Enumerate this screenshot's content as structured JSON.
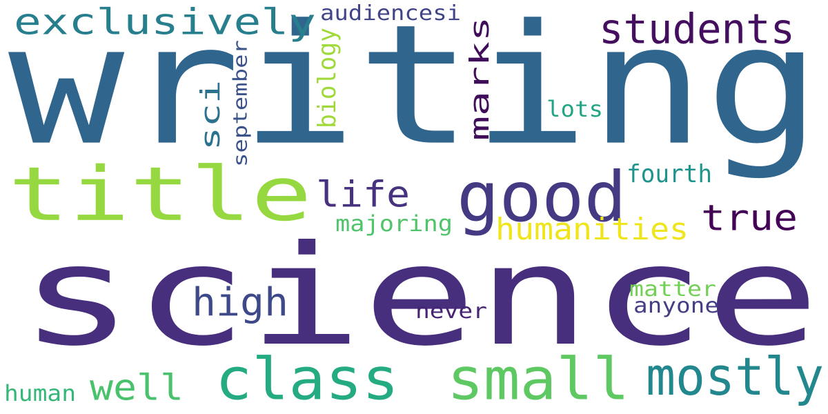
{
  "word_cloud": {
    "background": "#ffffff",
    "words": [
      {
        "text": "writing",
        "color": "#30668e",
        "vertical": false
      },
      {
        "text": "science",
        "color": "#472f7d",
        "vertical": false
      },
      {
        "text": "title",
        "color": "#96d83f",
        "vertical": false
      },
      {
        "text": "good",
        "color": "#443a83",
        "vertical": false
      },
      {
        "text": "class",
        "color": "#25ab82",
        "vertical": false
      },
      {
        "text": "small",
        "color": "#5ec962",
        "vertical": false
      },
      {
        "text": "mostly",
        "color": "#23888e",
        "vertical": false
      },
      {
        "text": "students",
        "color": "#440f5e",
        "vertical": false
      },
      {
        "text": "exclusively",
        "color": "#277f8e",
        "vertical": false
      },
      {
        "text": "marks",
        "color": "#3f0d5a",
        "vertical": true
      },
      {
        "text": "sci",
        "color": "#2c728e",
        "vertical": true
      },
      {
        "text": "life",
        "color": "#46327e",
        "vertical": false
      },
      {
        "text": "high",
        "color": "#3e4989",
        "vertical": false
      },
      {
        "text": "true",
        "color": "#440256",
        "vertical": false
      },
      {
        "text": "humanities",
        "color": "#efe51c",
        "vertical": false
      },
      {
        "text": "well",
        "color": "#4ac16d",
        "vertical": false
      },
      {
        "text": "audiencesi",
        "color": "#414487",
        "vertical": false
      },
      {
        "text": "september",
        "color": "#3b528b",
        "vertical": true
      },
      {
        "text": "biology",
        "color": "#9fda3a",
        "vertical": true
      },
      {
        "text": "lots",
        "color": "#21a585",
        "vertical": false
      },
      {
        "text": "fourth",
        "color": "#1f948c",
        "vertical": false
      },
      {
        "text": "majoring",
        "color": "#50c46a",
        "vertical": false
      },
      {
        "text": "matter",
        "color": "#73d056",
        "vertical": false
      },
      {
        "text": "anyone",
        "color": "#433e85",
        "vertical": false
      },
      {
        "text": "never",
        "color": "#482475",
        "vertical": false
      },
      {
        "text": "human",
        "color": "#35b779",
        "vertical": false
      }
    ]
  }
}
